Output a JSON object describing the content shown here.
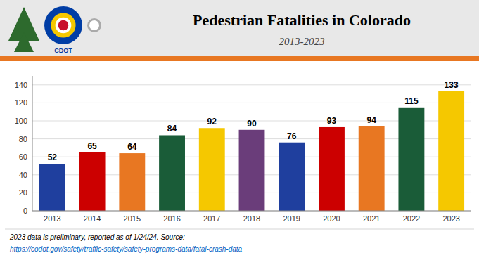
{
  "chart_data": {
    "type": "bar",
    "title": "Pedestrian Fatalities in Colorado",
    "subtitle": "2013-2023",
    "categories": [
      "2013",
      "2014",
      "2015",
      "2016",
      "2017",
      "2018",
      "2019",
      "2020",
      "2021",
      "2022",
      "2023"
    ],
    "values": [
      52,
      65,
      64,
      84,
      92,
      90,
      76,
      93,
      94,
      115,
      133
    ],
    "colors": [
      "#1f3f9e",
      "#cc0000",
      "#e87722",
      "#1a5c38",
      "#f5c800",
      "#6a3d7a",
      "#1f3f9e",
      "#cc0000",
      "#e87722",
      "#1a5c38",
      "#f5c800"
    ],
    "ylim": [
      0,
      150
    ],
    "yticks": [
      0,
      20,
      40,
      60,
      80,
      100,
      120,
      140
    ],
    "grid": true,
    "data_labels": true,
    "annotations": [
      "2023 data is preliminary, reported as of 1/24/24. Source: ",
      "https://codot.gov/safety/traffic-safety/safety-programs-data/fatal-crash-data",
      "CDOT"
    ]
  }
}
